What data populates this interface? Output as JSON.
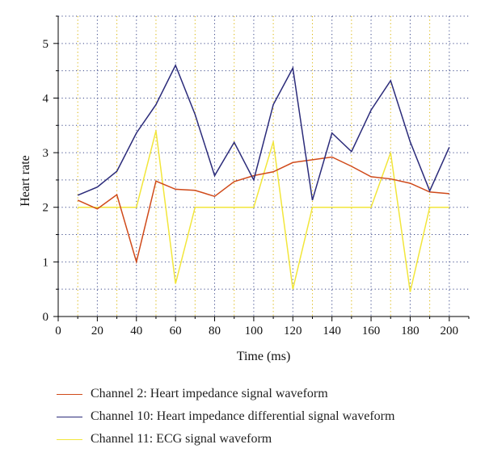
{
  "chart_data": {
    "type": "line",
    "xlabel": "Time (ms)",
    "ylabel": "Heart rate",
    "xlim": [
      0,
      210
    ],
    "ylim": [
      0,
      5.5
    ],
    "x_ticks": [
      0,
      20,
      40,
      60,
      80,
      100,
      120,
      140,
      160,
      180,
      200
    ],
    "y_ticks": [
      0,
      1,
      2,
      3,
      4,
      5
    ],
    "grid": true,
    "legend_position": "bottom",
    "x": [
      10,
      20,
      30,
      40,
      50,
      60,
      70,
      80,
      90,
      100,
      110,
      120,
      130,
      140,
      150,
      160,
      170,
      180,
      190,
      200
    ],
    "series": [
      {
        "name": "Channel 2: Heart impedance signal waveform",
        "color": "#d04a1a",
        "values": [
          2.13,
          1.97,
          2.23,
          1.0,
          2.48,
          2.33,
          2.31,
          2.2,
          2.47,
          2.58,
          2.65,
          2.82,
          2.87,
          2.92,
          2.75,
          2.56,
          2.52,
          2.44,
          2.28,
          2.25
        ]
      },
      {
        "name": "Channel 10: Heart impedance differential signal waveform",
        "color": "#2b2b7a",
        "values": [
          2.22,
          2.37,
          2.66,
          3.36,
          3.88,
          4.6,
          3.7,
          2.58,
          3.19,
          2.5,
          3.88,
          4.55,
          2.13,
          3.36,
          3.02,
          3.78,
          4.32,
          3.2,
          2.3,
          3.1
        ]
      },
      {
        "name": "Channel 11: ECG signal waveform",
        "color": "#f2e63a",
        "values": [
          2.0,
          2.0,
          2.0,
          2.0,
          3.4,
          0.6,
          2.0,
          2.0,
          2.0,
          2.0,
          3.2,
          0.5,
          2.0,
          2.0,
          2.0,
          2.0,
          3.0,
          0.45,
          2.0,
          2.0
        ]
      }
    ]
  }
}
